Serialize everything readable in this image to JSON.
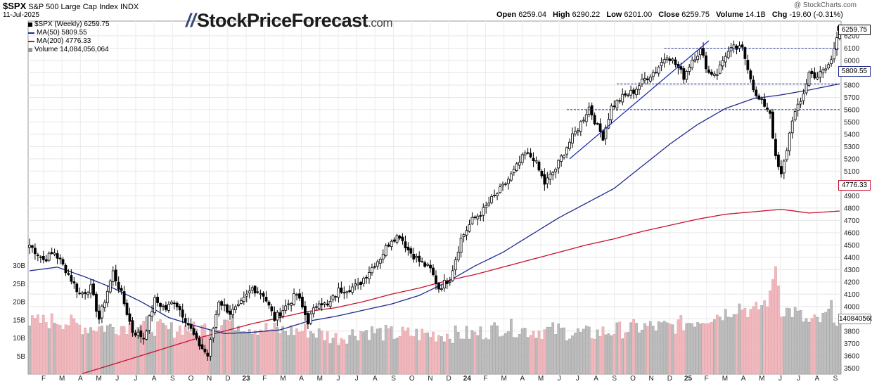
{
  "header": {
    "symbol": "$SPX",
    "name": "S&P 500 Large Cap Index",
    "exchange": "INDX",
    "date": "11-Jul-2025",
    "open_label": "Open",
    "open": "6259.04",
    "high_label": "High",
    "high": "6290.22",
    "low_label": "Low",
    "low": "6201.00",
    "close_label": "Close",
    "close": "6259.75",
    "volume_label": "Volume",
    "volume": "14.1B",
    "chg_label": "Chg",
    "chg": "-19.60 (-0.31%)",
    "credit": "@ StockCharts.com"
  },
  "legend": [
    {
      "label": "$SPX (Weekly) 6259.75",
      "color": "#000000"
    },
    {
      "label": "MA(50) 5809.55",
      "color": "#1f2a8a"
    },
    {
      "label": "MA(200) 4776.33",
      "color": "#c8102e"
    },
    {
      "label": "Volume 14,084,056,064",
      "color": "#777777"
    }
  ],
  "logo": {
    "main": "StockPriceForecast",
    "domain": ".com"
  },
  "chart_data": {
    "type": "candlestick",
    "price_axis": {
      "ylim": [
        3450,
        6320
      ],
      "ticks": [
        3500,
        3600,
        3700,
        3800,
        3900,
        4000,
        4100,
        4200,
        4300,
        4400,
        4500,
        4600,
        4700,
        4800,
        4900,
        5000,
        5100,
        5200,
        5300,
        5400,
        5500,
        5600,
        5700,
        5800,
        5900,
        6000,
        6100,
        6200
      ]
    },
    "volume_axis": {
      "ylim": [
        0,
        35
      ],
      "ticks": [
        "5B",
        "10B",
        "15B",
        "20B",
        "25B",
        "30B"
      ],
      "tick_values": [
        5,
        10,
        15,
        20,
        25,
        30
      ]
    },
    "x_labels": [
      "F",
      "M",
      "A",
      "M",
      "J",
      "J",
      "A",
      "S",
      "O",
      "N",
      "D",
      "23",
      "F",
      "M",
      "A",
      "M",
      "J",
      "J",
      "A",
      "S",
      "O",
      "N",
      "D",
      "24",
      "F",
      "M",
      "A",
      "M",
      "J",
      "J",
      "A",
      "S",
      "O",
      "N",
      "D",
      "25",
      "F",
      "M",
      "A",
      "M",
      "J",
      "J",
      "A",
      "S"
    ],
    "last_values": {
      "close": "6259.75",
      "ma50": "5809.55",
      "ma200": "4776.33",
      "volume": "14084056064",
      "volume_label": "14084056064"
    },
    "series_anchors": {
      "price": [
        [
          0,
          4500
        ],
        [
          5,
          4380
        ],
        [
          9,
          4440
        ],
        [
          13,
          4300
        ],
        [
          18,
          4100
        ],
        [
          22,
          4150
        ],
        [
          25,
          3900
        ],
        [
          30,
          4280
        ],
        [
          33,
          4100
        ],
        [
          37,
          3800
        ],
        [
          41,
          3750
        ],
        [
          45,
          4050
        ],
        [
          49,
          3980
        ],
        [
          52,
          4050
        ],
        [
          56,
          3900
        ],
        [
          60,
          3720
        ],
        [
          64,
          3600
        ],
        [
          68,
          4050
        ],
        [
          72,
          3950
        ],
        [
          75,
          3990
        ],
        [
          80,
          4150
        ],
        [
          84,
          4100
        ],
        [
          88,
          3900
        ],
        [
          92,
          4000
        ],
        [
          96,
          4100
        ],
        [
          100,
          3880
        ],
        [
          104,
          4050
        ],
        [
          107,
          4000
        ],
        [
          111,
          4130
        ],
        [
          115,
          4150
        ],
        [
          118,
          4170
        ],
        [
          122,
          4290
        ],
        [
          126,
          4400
        ],
        [
          130,
          4550
        ],
        [
          133,
          4580
        ],
        [
          136,
          4460
        ],
        [
          140,
          4370
        ],
        [
          144,
          4300
        ],
        [
          147,
          4150
        ],
        [
          151,
          4230
        ],
        [
          155,
          4550
        ],
        [
          159,
          4700
        ],
        [
          163,
          4780
        ],
        [
          166,
          4870
        ],
        [
          170,
          4970
        ],
        [
          174,
          5100
        ],
        [
          178,
          5240
        ],
        [
          181,
          5210
        ],
        [
          185,
          5000
        ],
        [
          189,
          5120
        ],
        [
          193,
          5300
        ],
        [
          197,
          5450
        ],
        [
          201,
          5620
        ],
        [
          204,
          5460
        ],
        [
          206,
          5380
        ],
        [
          209,
          5620
        ],
        [
          213,
          5700
        ],
        [
          217,
          5750
        ],
        [
          221,
          5850
        ],
        [
          225,
          5920
        ],
        [
          229,
          6050
        ],
        [
          232,
          5970
        ],
        [
          235,
          5870
        ],
        [
          238,
          6010
        ],
        [
          241,
          6080
        ],
        [
          244,
          5900
        ],
        [
          247,
          5900
        ],
        [
          250,
          6050
        ],
        [
          253,
          6100
        ],
        [
          256,
          6090
        ],
        [
          258,
          5950
        ],
        [
          261,
          5700
        ],
        [
          264,
          5640
        ],
        [
          266,
          5580
        ],
        [
          268,
          5200
        ],
        [
          270,
          5060
        ],
        [
          272,
          5280
        ],
        [
          274,
          5530
        ],
        [
          277,
          5660
        ],
        [
          280,
          5900
        ],
        [
          283,
          5870
        ],
        [
          286,
          5930
        ],
        [
          288,
          6000
        ],
        [
          290,
          6210
        ],
        [
          291,
          6260
        ]
      ],
      "ma50": [
        [
          0,
          4290
        ],
        [
          10,
          4320
        ],
        [
          20,
          4240
        ],
        [
          30,
          4150
        ],
        [
          40,
          4040
        ],
        [
          50,
          3910
        ],
        [
          60,
          3840
        ],
        [
          70,
          3780
        ],
        [
          80,
          3790
        ],
        [
          90,
          3810
        ],
        [
          100,
          3880
        ],
        [
          110,
          3920
        ],
        [
          120,
          3970
        ],
        [
          130,
          4020
        ],
        [
          140,
          4090
        ],
        [
          150,
          4200
        ],
        [
          160,
          4330
        ],
        [
          170,
          4440
        ],
        [
          180,
          4580
        ],
        [
          190,
          4720
        ],
        [
          200,
          4840
        ],
        [
          210,
          4960
        ],
        [
          220,
          5140
        ],
        [
          230,
          5320
        ],
        [
          240,
          5480
        ],
        [
          250,
          5610
        ],
        [
          260,
          5690
        ],
        [
          270,
          5720
        ],
        [
          280,
          5760
        ],
        [
          291,
          5810
        ]
      ],
      "ma200": [
        [
          19,
          3455
        ],
        [
          30,
          3530
        ],
        [
          40,
          3600
        ],
        [
          50,
          3670
        ],
        [
          60,
          3740
        ],
        [
          70,
          3800
        ],
        [
          80,
          3860
        ],
        [
          90,
          3910
        ],
        [
          100,
          3960
        ],
        [
          110,
          3990
        ],
        [
          120,
          4040
        ],
        [
          130,
          4100
        ],
        [
          140,
          4150
        ],
        [
          150,
          4210
        ],
        [
          160,
          4260
        ],
        [
          170,
          4320
        ],
        [
          180,
          4380
        ],
        [
          190,
          4440
        ],
        [
          200,
          4500
        ],
        [
          210,
          4550
        ],
        [
          220,
          4610
        ],
        [
          230,
          4660
        ],
        [
          240,
          4710
        ],
        [
          250,
          4750
        ],
        [
          260,
          4770
        ],
        [
          270,
          4790
        ],
        [
          280,
          4760
        ],
        [
          291,
          4776
        ]
      ],
      "volume": [
        [
          0,
          14
        ],
        [
          10,
          15
        ],
        [
          20,
          13
        ],
        [
          30,
          13
        ],
        [
          40,
          14
        ],
        [
          50,
          12
        ],
        [
          55,
          13
        ],
        [
          60,
          12
        ],
        [
          70,
          15
        ],
        [
          80,
          13
        ],
        [
          90,
          12
        ],
        [
          100,
          12
        ],
        [
          110,
          10
        ],
        [
          120,
          12
        ],
        [
          130,
          11
        ],
        [
          140,
          11
        ],
        [
          150,
          11
        ],
        [
          160,
          11
        ],
        [
          170,
          13
        ],
        [
          180,
          12
        ],
        [
          190,
          12
        ],
        [
          200,
          11
        ],
        [
          210,
          12
        ],
        [
          220,
          13
        ],
        [
          230,
          13
        ],
        [
          240,
          15
        ],
        [
          250,
          17
        ],
        [
          255,
          19
        ],
        [
          260,
          17
        ],
        [
          266,
          21
        ],
        [
          268,
          31
        ],
        [
          270,
          18
        ],
        [
          275,
          17
        ],
        [
          280,
          14
        ],
        [
          285,
          15
        ],
        [
          288,
          18
        ],
        [
          291,
          14
        ]
      ]
    },
    "levels": [
      {
        "value": 6100,
        "from": 228,
        "to": 291
      },
      {
        "value": 5809.55,
        "from": 211,
        "to": 291
      },
      {
        "value": 5600,
        "from": 193,
        "to": 291
      }
    ],
    "trendline": {
      "from": [
        194,
        5200
      ],
      "to": [
        244,
        6160
      ]
    }
  }
}
